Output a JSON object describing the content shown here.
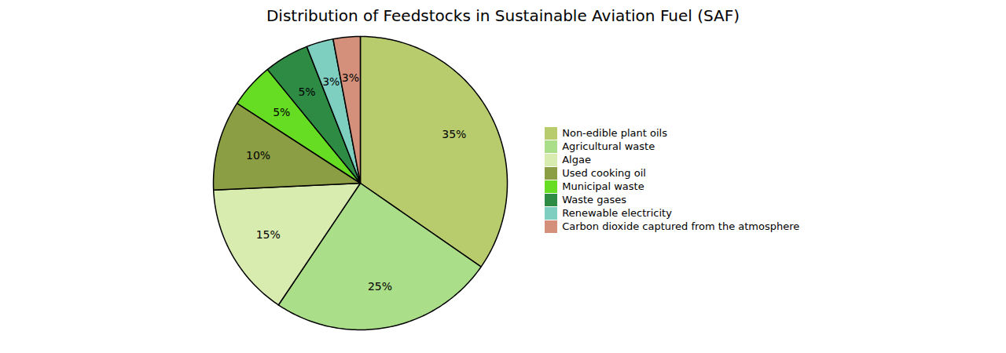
{
  "chart_data": {
    "type": "pie",
    "title": "Distribution of Feedstocks in Sustainable Aviation Fuel (SAF)",
    "categories": [
      "Non-edible plant oils",
      "Agricultural waste",
      "Algae",
      "Used cooking oil",
      "Municipal waste",
      "Waste gases",
      "Renewable electricity",
      "Carbon dioxide captured from the atmosphere"
    ],
    "values": [
      35,
      25,
      15,
      10,
      5,
      5,
      3,
      3
    ],
    "value_labels": [
      "35%",
      "25%",
      "15%",
      "10%",
      "5%",
      "5%",
      "3%",
      "3%"
    ],
    "colors": [
      "#b8cc6e",
      "#aade88",
      "#d8ecb0",
      "#8c9e44",
      "#66dd22",
      "#2e8b44",
      "#7ecfc0",
      "#d4907a"
    ],
    "data_labels": true,
    "legend": "right"
  }
}
